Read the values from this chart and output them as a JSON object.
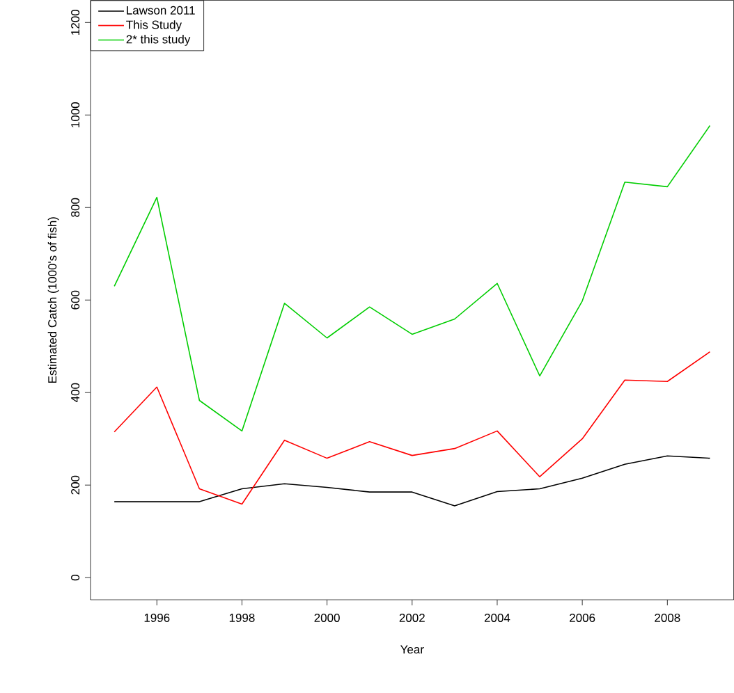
{
  "chart_data": {
    "type": "line",
    "xlabel": "Year",
    "ylabel": "Estimated Catch (1000's of fish)",
    "x": [
      1995,
      1996,
      1997,
      1998,
      1999,
      2000,
      2001,
      2002,
      2003,
      2004,
      2005,
      2006,
      2007,
      2008,
      2009
    ],
    "series": [
      {
        "name": "Lawson 2011",
        "color": "#000000",
        "values": [
          164,
          164,
          164,
          192,
          203,
          195,
          185,
          185,
          155,
          186,
          192,
          215,
          245,
          263,
          258
        ]
      },
      {
        "name": "This Study",
        "color": "#ff0000",
        "values": [
          315,
          412,
          192,
          159,
          297,
          258,
          294,
          264,
          279,
          317,
          218,
          300,
          427,
          424,
          488
        ]
      },
      {
        "name": "2* this study",
        "color": "#00cd00",
        "values": [
          630,
          822,
          383,
          317,
          593,
          518,
          585,
          526,
          559,
          636,
          436,
          598,
          855,
          845,
          977
        ]
      }
    ],
    "xlim": [
      1994.44,
      2009.56
    ],
    "ylim": [
      -48,
      1248
    ],
    "xticks": [
      1996,
      1998,
      2000,
      2002,
      2004,
      2006,
      2008
    ],
    "yticks": [
      0,
      200,
      400,
      600,
      800,
      1000,
      1200
    ],
    "legend": "top left",
    "grid": false,
    "marker": "none",
    "line_style": "solid"
  }
}
